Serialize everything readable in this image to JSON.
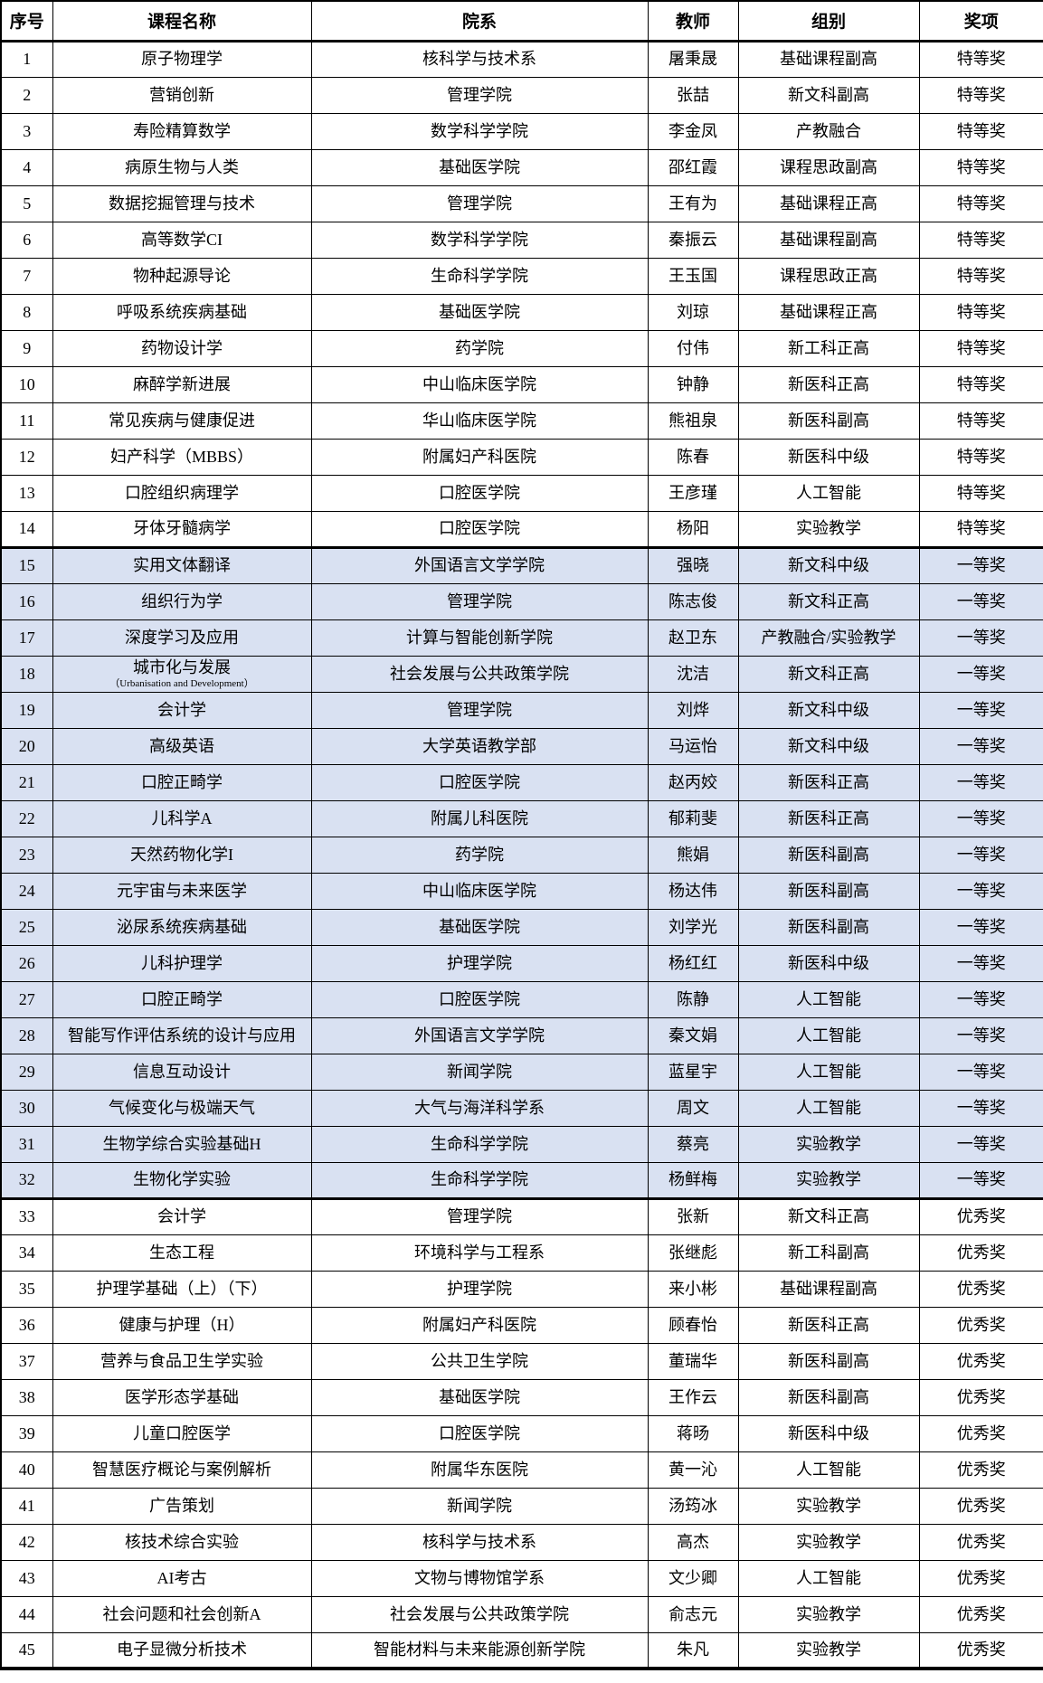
{
  "colors": {
    "band_blue": "#d9e1f2",
    "band_white": "#ffffff",
    "border": "#000000",
    "text": "#000000"
  },
  "table": {
    "columns": [
      "序号",
      "课程名称",
      "院系",
      "教师",
      "组别",
      "奖项"
    ],
    "award_band": {
      "特等奖": "white",
      "一等奖": "blue",
      "优秀奖": "white"
    },
    "rows": [
      {
        "no": "1",
        "course": "原子物理学",
        "dept": "核科学与技术系",
        "teacher": "屠秉晟",
        "group": "基础课程副高",
        "award": "特等奖"
      },
      {
        "no": "2",
        "course": "营销创新",
        "dept": "管理学院",
        "teacher": "张喆",
        "group": "新文科副高",
        "award": "特等奖"
      },
      {
        "no": "3",
        "course": "寿险精算数学",
        "dept": "数学科学学院",
        "teacher": "李金凤",
        "group": "产教融合",
        "award": "特等奖"
      },
      {
        "no": "4",
        "course": "病原生物与人类",
        "dept": "基础医学院",
        "teacher": "邵红霞",
        "group": "课程思政副高",
        "award": "特等奖"
      },
      {
        "no": "5",
        "course": "数据挖掘管理与技术",
        "dept": "管理学院",
        "teacher": "王有为",
        "group": "基础课程正高",
        "award": "特等奖"
      },
      {
        "no": "6",
        "course": "高等数学CI",
        "dept": "数学科学学院",
        "teacher": "秦振云",
        "group": "基础课程副高",
        "award": "特等奖"
      },
      {
        "no": "7",
        "course": "物种起源导论",
        "dept": "生命科学学院",
        "teacher": "王玉国",
        "group": "课程思政正高",
        "award": "特等奖"
      },
      {
        "no": "8",
        "course": "呼吸系统疾病基础",
        "dept": "基础医学院",
        "teacher": "刘琼",
        "group": "基础课程正高",
        "award": "特等奖"
      },
      {
        "no": "9",
        "course": "药物设计学",
        "dept": "药学院",
        "teacher": "付伟",
        "group": "新工科正高",
        "award": "特等奖"
      },
      {
        "no": "10",
        "course": "麻醉学新进展",
        "dept": "中山临床医学院",
        "teacher": "钟静",
        "group": "新医科正高",
        "award": "特等奖"
      },
      {
        "no": "11",
        "course": "常见疾病与健康促进",
        "dept": "华山临床医学院",
        "teacher": "熊祖泉",
        "group": "新医科副高",
        "award": "特等奖"
      },
      {
        "no": "12",
        "course": "妇产科学（MBBS）",
        "dept": "附属妇产科医院",
        "teacher": "陈春",
        "group": "新医科中级",
        "award": "特等奖"
      },
      {
        "no": "13",
        "course": "口腔组织病理学",
        "dept": "口腔医学院",
        "teacher": "王彦瑾",
        "group": "人工智能",
        "award": "特等奖"
      },
      {
        "no": "14",
        "course": "牙体牙髓病学",
        "dept": "口腔医学院",
        "teacher": "杨阳",
        "group": "实验教学",
        "award": "特等奖"
      },
      {
        "no": "15",
        "course": "实用文体翻译",
        "dept": "外国语言文学学院",
        "teacher": "强晓",
        "group": "新文科中级",
        "award": "一等奖"
      },
      {
        "no": "16",
        "course": "组织行为学",
        "dept": "管理学院",
        "teacher": "陈志俊",
        "group": "新文科正高",
        "award": "一等奖"
      },
      {
        "no": "17",
        "course": "深度学习及应用",
        "dept": "计算与智能创新学院",
        "teacher": "赵卫东",
        "group": "产教融合/实验教学",
        "award": "一等奖"
      },
      {
        "no": "18",
        "course": "城市化与发展",
        "course_sub": "（Urbanisation and Development）",
        "dept": "社会发展与公共政策学院",
        "teacher": "沈洁",
        "group": "新文科正高",
        "award": "一等奖"
      },
      {
        "no": "19",
        "course": "会计学",
        "dept": "管理学院",
        "teacher": "刘烨",
        "group": "新文科中级",
        "award": "一等奖"
      },
      {
        "no": "20",
        "course": "高级英语",
        "dept": "大学英语教学部",
        "teacher": "马运怡",
        "group": "新文科中级",
        "award": "一等奖"
      },
      {
        "no": "21",
        "course": "口腔正畸学",
        "dept": "口腔医学院",
        "teacher": "赵丙姣",
        "group": "新医科正高",
        "award": "一等奖"
      },
      {
        "no": "22",
        "course": "儿科学A",
        "dept": "附属儿科医院",
        "teacher": "郁莉斐",
        "group": "新医科正高",
        "award": "一等奖"
      },
      {
        "no": "23",
        "course": "天然药物化学I",
        "dept": "药学院",
        "teacher": "熊娟",
        "group": "新医科副高",
        "award": "一等奖"
      },
      {
        "no": "24",
        "course": "元宇宙与未来医学",
        "dept": "中山临床医学院",
        "teacher": "杨达伟",
        "group": "新医科副高",
        "award": "一等奖"
      },
      {
        "no": "25",
        "course": "泌尿系统疾病基础",
        "dept": "基础医学院",
        "teacher": "刘学光",
        "group": "新医科副高",
        "award": "一等奖"
      },
      {
        "no": "26",
        "course": "儿科护理学",
        "dept": "护理学院",
        "teacher": "杨红红",
        "group": "新医科中级",
        "award": "一等奖"
      },
      {
        "no": "27",
        "course": "口腔正畸学",
        "dept": "口腔医学院",
        "teacher": "陈静",
        "group": "人工智能",
        "award": "一等奖"
      },
      {
        "no": "28",
        "course": "智能写作评估系统的设计与应用",
        "dept": "外国语言文学学院",
        "teacher": "秦文娟",
        "group": "人工智能",
        "award": "一等奖"
      },
      {
        "no": "29",
        "course": "信息互动设计",
        "dept": "新闻学院",
        "teacher": "蓝星宇",
        "group": "人工智能",
        "award": "一等奖"
      },
      {
        "no": "30",
        "course": "气候变化与极端天气",
        "dept": "大气与海洋科学系",
        "teacher": "周文",
        "group": "人工智能",
        "award": "一等奖"
      },
      {
        "no": "31",
        "course": "生物学综合实验基础H",
        "dept": "生命科学学院",
        "teacher": "蔡亮",
        "group": "实验教学",
        "award": "一等奖"
      },
      {
        "no": "32",
        "course": "生物化学实验",
        "dept": "生命科学学院",
        "teacher": "杨鲜梅",
        "group": "实验教学",
        "award": "一等奖"
      },
      {
        "no": "33",
        "course": "会计学",
        "dept": "管理学院",
        "teacher": "张新",
        "group": "新文科正高",
        "award": "优秀奖"
      },
      {
        "no": "34",
        "course": "生态工程",
        "dept": "环境科学与工程系",
        "teacher": "张继彪",
        "group": "新工科副高",
        "award": "优秀奖"
      },
      {
        "no": "35",
        "course": "护理学基础（上）（下）",
        "dept": "护理学院",
        "teacher": "来小彬",
        "group": "基础课程副高",
        "award": "优秀奖"
      },
      {
        "no": "36",
        "course": "健康与护理（H）",
        "dept": "附属妇产科医院",
        "teacher": "顾春怡",
        "group": "新医科正高",
        "award": "优秀奖"
      },
      {
        "no": "37",
        "course": "营养与食品卫生学实验",
        "dept": "公共卫生学院",
        "teacher": "董瑞华",
        "group": "新医科副高",
        "award": "优秀奖"
      },
      {
        "no": "38",
        "course": "医学形态学基础",
        "dept": "基础医学院",
        "teacher": "王作云",
        "group": "新医科副高",
        "award": "优秀奖"
      },
      {
        "no": "39",
        "course": "儿童口腔医学",
        "dept": "口腔医学院",
        "teacher": "蒋旸",
        "group": "新医科中级",
        "award": "优秀奖"
      },
      {
        "no": "40",
        "course": "智慧医疗概论与案例解析",
        "dept": "附属华东医院",
        "teacher": "黄一沁",
        "group": "人工智能",
        "award": "优秀奖"
      },
      {
        "no": "41",
        "course": "广告策划",
        "dept": "新闻学院",
        "teacher": "汤筠冰",
        "group": "实验教学",
        "award": "优秀奖"
      },
      {
        "no": "42",
        "course": "核技术综合实验",
        "dept": "核科学与技术系",
        "teacher": "高杰",
        "group": "实验教学",
        "award": "优秀奖"
      },
      {
        "no": "43",
        "course": "AI考古",
        "dept": "文物与博物馆学系",
        "teacher": "文少卿",
        "group": "人工智能",
        "award": "优秀奖"
      },
      {
        "no": "44",
        "course": "社会问题和社会创新A",
        "dept": "社会发展与公共政策学院",
        "teacher": "俞志元",
        "group": "实验教学",
        "award": "优秀奖"
      },
      {
        "no": "45",
        "course": "电子显微分析技术",
        "dept": "智能材料与未来能源创新学院",
        "teacher": "朱凡",
        "group": "实验教学",
        "award": "优秀奖"
      }
    ]
  }
}
